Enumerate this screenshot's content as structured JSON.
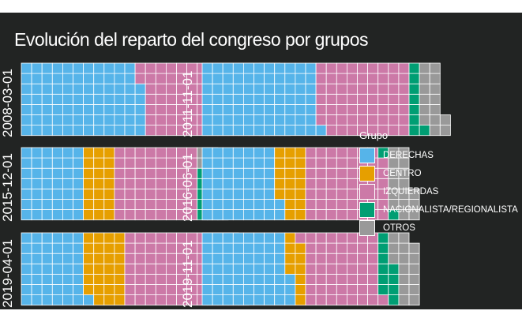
{
  "title": "Evolución del reparto del congreso por grupos",
  "legend": {
    "title": "Grupo",
    "items": [
      {
        "label": "DERECHAS",
        "color": "#56B4E9"
      },
      {
        "label": "CENTRO",
        "color": "#E69F00"
      },
      {
        "label": "IZQUIERDAS",
        "color": "#CC79A7"
      },
      {
        "label": "NACIONALISTA/REGIONALISTA",
        "color": "#009E73"
      },
      {
        "label": "OTROS",
        "color": "#999999"
      }
    ]
  },
  "chart_data": {
    "type": "waffle",
    "rows_per_column": 7,
    "facets": [
      {
        "label": "2008-03-01",
        "values": {
          "DERECHAS": 82,
          "CENTRO": 0,
          "IZQUIERDAS": 68,
          "NACIONALISTA/REGIONALISTA": 10,
          "OTROS": 17
        }
      },
      {
        "label": "2011-11-01",
        "values": {
          "DERECHAS": 78,
          "CENTRO": 0,
          "IZQUIERDAS": 62,
          "NACIONALISTA/REGIONALISTA": 8,
          "OTROS": 15
        }
      },
      {
        "label": "2015-12-01",
        "values": {
          "DERECHAS": 42,
          "CENTRO": 21,
          "IZQUIERDAS": 56,
          "NACIONALISTA/REGIONALISTA": 5,
          "OTROS": 15
        }
      },
      {
        "label": "2016-06-01",
        "values": {
          "DERECHAS": 51,
          "CENTRO": 19,
          "IZQUIERDAS": 55,
          "NACIONALISTA/REGIONALISTA": 2,
          "OTROS": 16
        }
      },
      {
        "label": "2019-04-01",
        "values": {
          "DERECHAS": 43,
          "CENTRO": 27,
          "IZQUIERDAS": 58,
          "NACIONALISTA/REGIONALISTA": 7,
          "OTROS": 16
        }
      },
      {
        "label": "2019-11-01",
        "values": {
          "DERECHAS": 59,
          "CENTRO": 10,
          "IZQUIERDAS": 51,
          "NACIONALISTA/REGIONALISTA": 10,
          "OTROS": 16
        }
      }
    ]
  }
}
